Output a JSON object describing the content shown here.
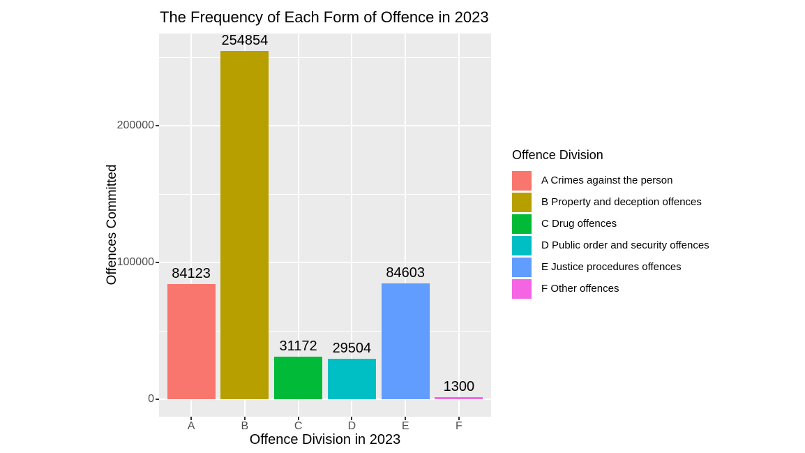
{
  "page": {
    "background": "#FFFFFF"
  },
  "chart_data": {
    "type": "bar",
    "title": "The Frequency of Each Form of Offence in 2023",
    "xlabel": "Offence Division in 2023",
    "ylabel": "Offences Committed",
    "categories": [
      "A",
      "B",
      "C",
      "D",
      "E",
      "F"
    ],
    "values": [
      84123,
      254854,
      31172,
      29504,
      84603,
      1300
    ],
    "bar_value_labels": [
      "84123",
      "254854",
      "31172",
      "29504",
      "84603",
      "1300"
    ],
    "bar_colors": [
      "#F8766D",
      "#B79F00",
      "#00BA38",
      "#00BFC4",
      "#619CFF",
      "#F564E3"
    ],
    "ylim": [
      -12743,
      267597
    ],
    "yticks": [
      0,
      100000,
      200000
    ],
    "ytick_labels": [
      "0",
      "100000",
      "200000"
    ],
    "yticks_minor": [
      50000,
      150000,
      250000
    ],
    "grid": true,
    "panel_background": "#EBEBEB",
    "gridline_color": "#FFFFFF",
    "tick_label_color": "#4D4D4D",
    "tick_mark_color": "#333333",
    "legend": {
      "title": "Offence Division",
      "position": "right",
      "entries": [
        {
          "label": "A Crimes against the person",
          "color": "#F8766D"
        },
        {
          "label": "B Property and deception offences",
          "color": "#B79F00"
        },
        {
          "label": "C Drug offences",
          "color": "#00BA38"
        },
        {
          "label": "D Public order and security offences",
          "color": "#00BFC4"
        },
        {
          "label": "E Justice procedures offences",
          "color": "#619CFF"
        },
        {
          "label": "F Other offences",
          "color": "#F564E3"
        }
      ]
    }
  }
}
